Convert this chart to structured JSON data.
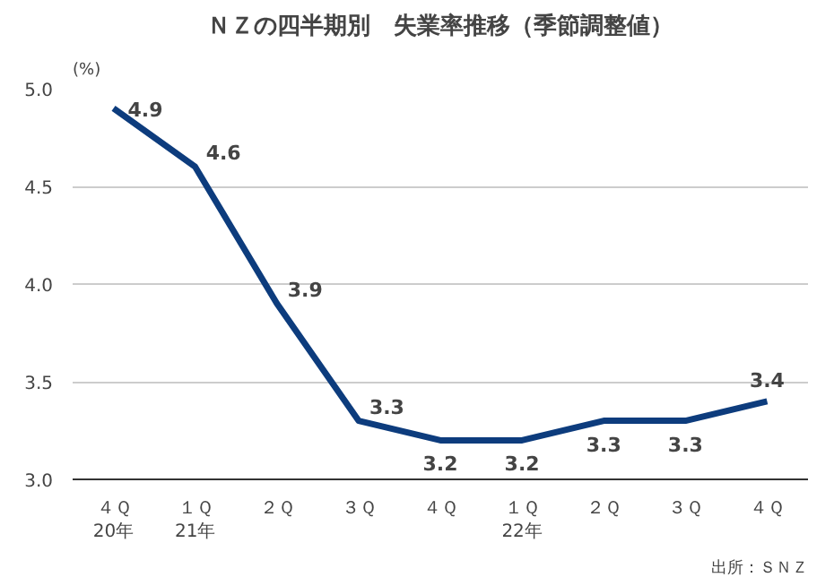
{
  "chart_data": {
    "type": "line",
    "title": "ＮＺの四半期別　失業率推移（季節調整値）",
    "ylabel": "(%)",
    "categories": [
      "４Ｑ\n20年",
      "１Ｑ\n21年",
      "２Ｑ",
      "３Ｑ",
      "４Ｑ",
      "１Ｑ\n22年",
      "２Ｑ",
      "３Ｑ",
      "４Ｑ"
    ],
    "series": [
      {
        "color": "#0d3c7d",
        "values": [
          4.9,
          4.6,
          3.9,
          3.3,
          3.2,
          3.2,
          3.3,
          3.3,
          3.4
        ]
      }
    ],
    "ylim": [
      3.0,
      5.0
    ],
    "yticks": [
      {
        "value": 3.0,
        "label": "3.0"
      },
      {
        "value": 3.5,
        "label": "3.5"
      },
      {
        "value": 4.0,
        "label": "4.0"
      },
      {
        "value": 4.5,
        "label": "4.5"
      },
      {
        "value": 5.0,
        "label": "5.0"
      }
    ],
    "grid": "y",
    "data_labels": true,
    "marker": "none",
    "line_style": "solid",
    "annotations": [
      "出所：ＳＮＺ"
    ]
  }
}
